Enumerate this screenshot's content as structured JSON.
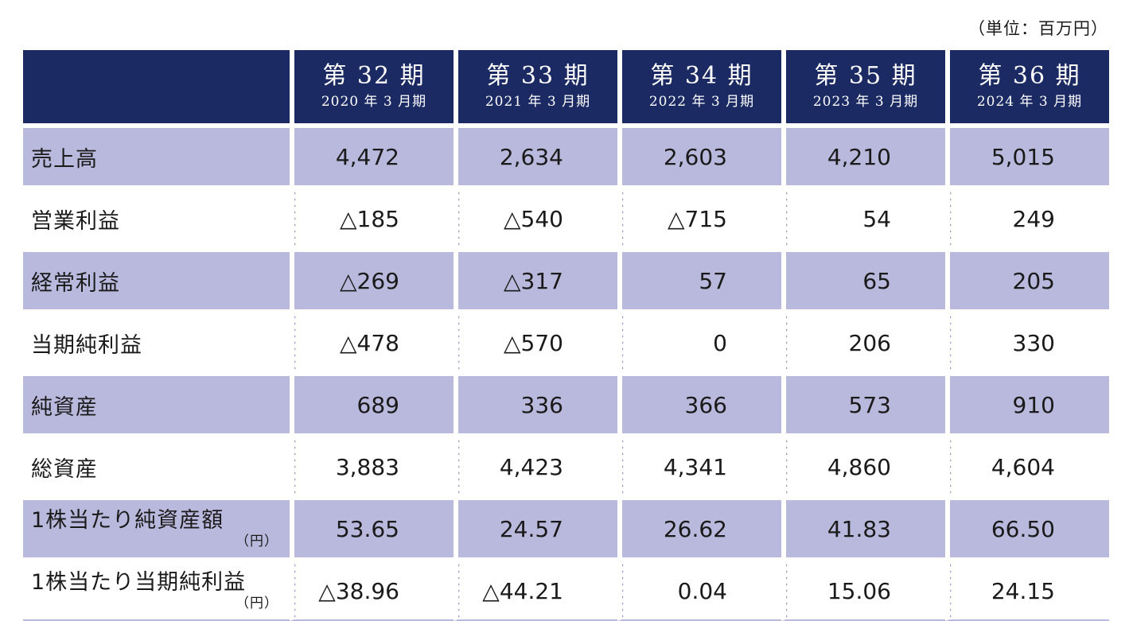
{
  "unit_note": "（単位：百万円）",
  "periods": [
    {
      "main": "第 32 期",
      "sub": "2020 年 3 月期"
    },
    {
      "main": "第 33 期",
      "sub": "2021 年 3 月期"
    },
    {
      "main": "第 34 期",
      "sub": "2022 年 3 月期"
    },
    {
      "main": "第 35 期",
      "sub": "2023 年 3 月期"
    },
    {
      "main": "第 36 期",
      "sub": "2024 年 3 月期"
    }
  ],
  "rows": [
    {
      "label": "売上高",
      "unit": "",
      "values": [
        "4,472",
        "2,634",
        "2,603",
        "4,210",
        "5,015"
      ]
    },
    {
      "label": "営業利益",
      "unit": "",
      "values": [
        "△185",
        "△540",
        "△715",
        "54",
        "249"
      ]
    },
    {
      "label": "経常利益",
      "unit": "",
      "values": [
        "△269",
        "△317",
        "57",
        "65",
        "205"
      ]
    },
    {
      "label": "当期純利益",
      "unit": "",
      "values": [
        "△478",
        "△570",
        "0",
        "206",
        "330"
      ]
    },
    {
      "label": "純資産",
      "unit": "",
      "values": [
        "689",
        "336",
        "366",
        "573",
        "910"
      ]
    },
    {
      "label": "総資産",
      "unit": "",
      "values": [
        "3,883",
        "4,423",
        "4,341",
        "4,860",
        "4,604"
      ]
    },
    {
      "label": "1株当たり純資産額",
      "unit": "（円）",
      "values": [
        "53.65",
        "24.57",
        "26.62",
        "41.83",
        "66.50"
      ]
    },
    {
      "label": "1株当たり当期純利益",
      "unit": "（円）",
      "values": [
        "△38.96",
        "△44.21",
        "0.04",
        "15.06",
        "24.15"
      ]
    }
  ]
}
